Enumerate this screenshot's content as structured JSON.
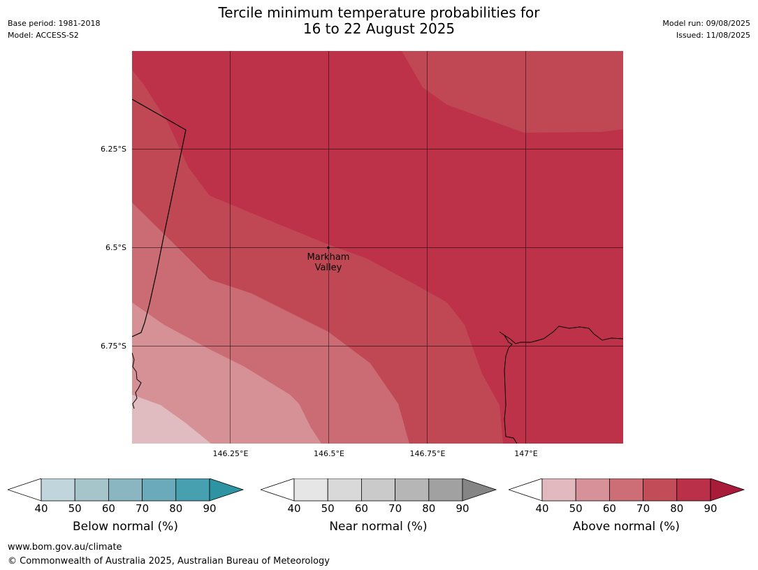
{
  "header": {
    "title_line1": "Tercile minimum temperature probabilities for",
    "title_line2": "16 to 22 August 2025",
    "base_period": "Base period: 1981-2018",
    "model": "Model: ACCESS-S2",
    "model_run": "Model run: 09/08/2025",
    "issued": "Issued: 11/08/2025"
  },
  "map": {
    "latitude_labels": [
      "6.25°S",
      "6.5°S",
      "6.75°S"
    ],
    "longitude_labels": [
      "146.25°E",
      "146.5°E",
      "146.75°E",
      "147°E"
    ],
    "place_line1": "Markham",
    "place_line2": "Valley",
    "shown_category": "Above normal",
    "probability_levels": [
      40,
      50,
      60,
      70,
      80,
      90
    ]
  },
  "legends": [
    {
      "title": "Below normal (%)",
      "ticks": [
        "40",
        "50",
        "60",
        "70",
        "80",
        "90"
      ],
      "colors": [
        "#c0d5dc",
        "#a6c5cb",
        "#8ab6c2",
        "#6aaabb",
        "#46a0b0"
      ],
      "extend_color": "#2e93a3"
    },
    {
      "title": "Near normal (%)",
      "ticks": [
        "40",
        "50",
        "60",
        "70",
        "80",
        "90"
      ],
      "colors": [
        "#e6e6e6",
        "#d9d9d9",
        "#cacaca",
        "#b6b6b6",
        "#a1a1a1"
      ],
      "extend_color": "#858585"
    },
    {
      "title": "Above normal (%)",
      "ticks": [
        "40",
        "50",
        "60",
        "70",
        "80",
        "90"
      ],
      "colors": [
        "#e2b9be",
        "#d79198",
        "#cd6e77",
        "#c24d59",
        "#bb3049"
      ],
      "extend_color": "#a81c3a"
    }
  ],
  "footer": {
    "url": "www.bom.gov.au/climate",
    "copyright": "© Commonwealth of Australia 2025, Australian Bureau of Meteorology"
  }
}
